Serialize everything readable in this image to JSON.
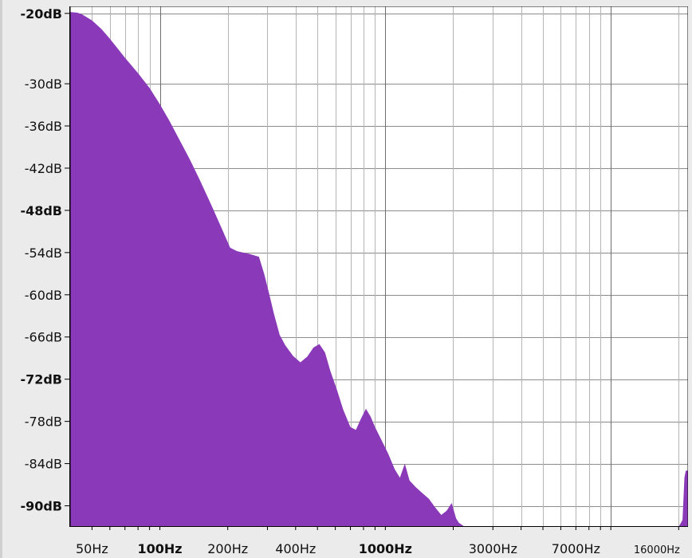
{
  "chart_data": {
    "type": "area",
    "title": "",
    "xlabel": "",
    "ylabel": "",
    "x_scale": "log",
    "xlim": [
      40,
      22000
    ],
    "ylim": [
      -93,
      -19
    ],
    "grid": true,
    "fill_color": "#8a3ab9",
    "y_ticks": [
      {
        "value": -20,
        "label": "-20dB",
        "bold": true
      },
      {
        "value": -30,
        "label": "-30dB",
        "bold": false
      },
      {
        "value": -36,
        "label": "-36dB",
        "bold": false
      },
      {
        "value": -42,
        "label": "-42dB",
        "bold": false
      },
      {
        "value": -48,
        "label": "-48dB",
        "bold": true
      },
      {
        "value": -54,
        "label": "-54dB",
        "bold": false
      },
      {
        "value": -60,
        "label": "-60dB",
        "bold": false
      },
      {
        "value": -66,
        "label": "-66dB",
        "bold": false
      },
      {
        "value": -72,
        "label": "-72dB",
        "bold": true
      },
      {
        "value": -78,
        "label": "-78dB",
        "bold": false
      },
      {
        "value": -84,
        "label": "-84dB",
        "bold": false
      },
      {
        "value": -90,
        "label": "-90dB",
        "bold": true
      }
    ],
    "x_tick_labels": [
      {
        "value": 50,
        "label": "50Hz",
        "style": "normal"
      },
      {
        "value": 100,
        "label": "100Hz",
        "style": "bold"
      },
      {
        "value": 200,
        "label": "200Hz",
        "style": "normal"
      },
      {
        "value": 400,
        "label": "400Hz",
        "style": "normal"
      },
      {
        "value": 1000,
        "label": "1000Hz",
        "style": "bold"
      },
      {
        "value": 3000,
        "label": "3000Hz",
        "style": "normal"
      },
      {
        "value": 7000,
        "label": "7000Hz",
        "style": "normal"
      },
      {
        "value": 16000,
        "label": "16000Hz",
        "style": "small"
      }
    ],
    "x_grid_minor": [
      50,
      60,
      70,
      80,
      90,
      200,
      300,
      400,
      500,
      600,
      700,
      800,
      900,
      2000,
      3000,
      4000,
      5000,
      6000,
      7000,
      8000,
      9000,
      20000
    ],
    "x_grid_major": [
      100,
      1000,
      10000
    ],
    "points": [
      [
        40,
        -19.8
      ],
      [
        43,
        -19.9
      ],
      [
        45,
        -20.1
      ],
      [
        50,
        -21.0
      ],
      [
        55,
        -22.2
      ],
      [
        60,
        -23.6
      ],
      [
        65,
        -25.0
      ],
      [
        70,
        -26.3
      ],
      [
        80,
        -28.5
      ],
      [
        90,
        -30.6
      ],
      [
        100,
        -32.9
      ],
      [
        110,
        -35.2
      ],
      [
        120,
        -37.5
      ],
      [
        135,
        -40.6
      ],
      [
        150,
        -43.6
      ],
      [
        170,
        -47.4
      ],
      [
        190,
        -50.9
      ],
      [
        205,
        -53.3
      ],
      [
        220,
        -53.8
      ],
      [
        250,
        -54.2
      ],
      [
        275,
        -54.6
      ],
      [
        290,
        -57.0
      ],
      [
        305,
        -59.8
      ],
      [
        320,
        -62.6
      ],
      [
        340,
        -65.7
      ],
      [
        360,
        -67.2
      ],
      [
        390,
        -68.7
      ],
      [
        420,
        -69.6
      ],
      [
        450,
        -68.8
      ],
      [
        480,
        -67.5
      ],
      [
        510,
        -67.0
      ],
      [
        540,
        -68.2
      ],
      [
        570,
        -70.8
      ],
      [
        610,
        -73.5
      ],
      [
        650,
        -76.3
      ],
      [
        700,
        -78.8
      ],
      [
        740,
        -79.2
      ],
      [
        780,
        -77.6
      ],
      [
        820,
        -76.2
      ],
      [
        860,
        -77.3
      ],
      [
        900,
        -78.8
      ],
      [
        960,
        -80.6
      ],
      [
        1030,
        -82.6
      ],
      [
        1100,
        -84.8
      ],
      [
        1160,
        -86.0
      ],
      [
        1220,
        -84.0
      ],
      [
        1280,
        -86.4
      ],
      [
        1360,
        -87.3
      ],
      [
        1460,
        -88.2
      ],
      [
        1560,
        -89.0
      ],
      [
        1660,
        -90.2
      ],
      [
        1770,
        -91.3
      ],
      [
        1870,
        -90.7
      ],
      [
        1970,
        -89.6
      ],
      [
        2060,
        -91.8
      ],
      [
        2120,
        -92.4
      ],
      [
        2250,
        -93.0
      ],
      [
        20000,
        -93.0
      ],
      [
        20800,
        -92.0
      ],
      [
        21200,
        -86.0
      ],
      [
        21500,
        -85.0
      ],
      [
        22000,
        -85.0
      ]
    ]
  }
}
